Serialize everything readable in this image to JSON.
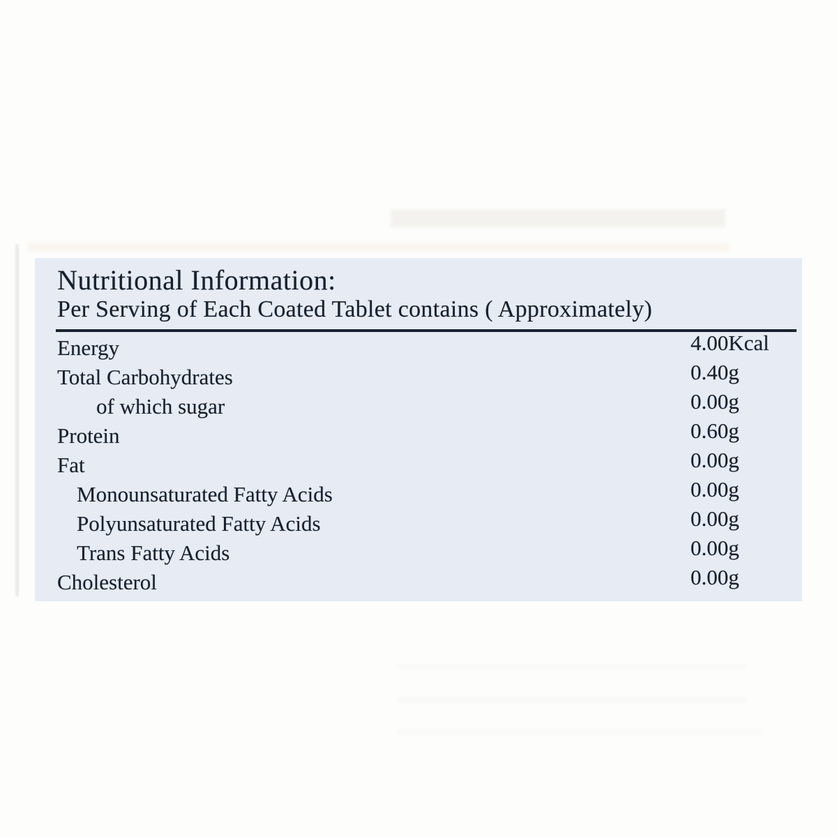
{
  "page": {
    "background_color": "#fdfdfc"
  },
  "panel": {
    "background_color": "#e7ecf4",
    "text_color": "#17202e",
    "title": "Nutritional Information:",
    "subtitle": "Per Serving of Each Coated Tablet contains ( Approximately)",
    "rows": [
      {
        "label": "Energy",
        "value": "4.00Kcal",
        "indent": 0
      },
      {
        "label": "Total Carbohydrates",
        "value": "0.40g",
        "indent": 0
      },
      {
        "label": "of which sugar",
        "value": "0.00g",
        "indent": 2
      },
      {
        "label": "Protein",
        "value": "0.60g",
        "indent": 0
      },
      {
        "label": "Fat",
        "value": "0.00g",
        "indent": 0
      },
      {
        "label": "Monounsaturated Fatty Acids",
        "value": "0.00g",
        "indent": 1
      },
      {
        "label": "Polyunsaturated Fatty Acids",
        "value": "0.00g",
        "indent": 1
      },
      {
        "label": "Trans Fatty Acids",
        "value": "0.00g",
        "indent": 1
      },
      {
        "label": "Cholesterol",
        "value": "0.00g",
        "indent": 0
      }
    ]
  }
}
